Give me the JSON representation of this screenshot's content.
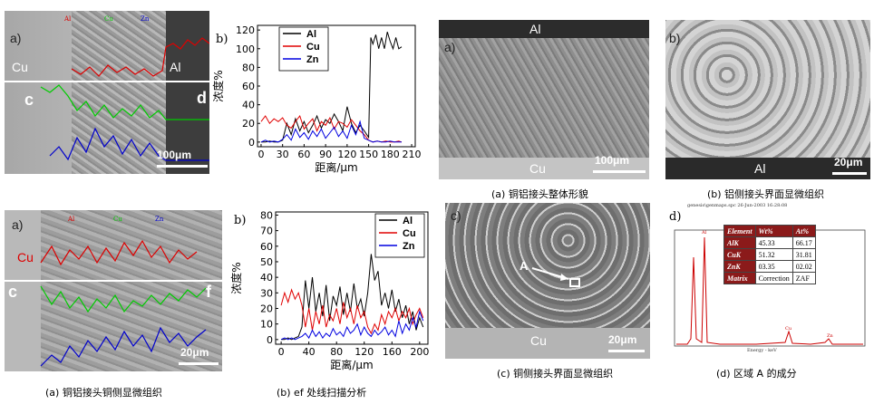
{
  "fig1": {
    "a": {
      "label": "a)",
      "cu": "Cu",
      "al": "Al",
      "c": "c",
      "d": "d",
      "scale": "100μm",
      "legend": [
        "Al",
        "Cu",
        "Zn"
      ]
    },
    "b": {
      "label": "b)",
      "ylabel": "浓度%",
      "xlabel": "距离/μm"
    }
  },
  "fig2": {
    "a": {
      "label": "a)",
      "cu": "Cu",
      "c": "c",
      "f": "f",
      "scale": "20μm",
      "legend": [
        "Al",
        "Cu",
        "Zn"
      ],
      "caption": "(a)  铜铝接头铜侧显微组织"
    },
    "b": {
      "label": "b)",
      "ylabel": "浓度%",
      "xlabel": "距离/μm",
      "caption": "(b) ef 处线扫描分析"
    }
  },
  "fig3": {
    "a": {
      "label": "a)",
      "al": "Al",
      "cu": "Cu",
      "scale": "100μm",
      "caption": "(a)  铜铝接头整体形貌"
    },
    "b": {
      "label": "b)",
      "al": "Al",
      "scale": "20μm",
      "caption": "(b)  铝侧接头界面显微组织"
    },
    "c": {
      "label": "c)",
      "a_mark": "A",
      "cu": "Cu",
      "scale": "20μm",
      "caption": "(c)  铜侧接头界面显微组织"
    },
    "d": {
      "label": "d)",
      "caption": "(d)  区域 A 的成分",
      "header_text": "genesis\\genmaps.spc   26-Jun-2003 16:28:08",
      "peaks": [
        "Al",
        "Cu",
        "Zn"
      ],
      "xaxis": "Energy - keV",
      "table": {
        "head": [
          "Element",
          "Wt%",
          "At%"
        ],
        "rows": [
          [
            "AlK",
            "45.33",
            "66.17"
          ],
          [
            "CuK",
            "51.32",
            "31.81"
          ],
          [
            "ZnK",
            "03.35",
            "02.02"
          ],
          [
            "Matrix",
            "Correction",
            "ZAF"
          ]
        ]
      }
    }
  },
  "chart_data": [
    {
      "type": "line",
      "id": "fig1b",
      "xlabel": "距离/μm",
      "ylabel": "浓度%",
      "xticks": [
        0,
        30,
        60,
        90,
        120,
        150,
        180,
        210
      ],
      "yticks": [
        0,
        20,
        40,
        60,
        80,
        100,
        120
      ],
      "xlim": [
        -5,
        215
      ],
      "ylim": [
        -5,
        125
      ],
      "legend_position": "top-left",
      "series": [
        {
          "name": "Al",
          "color": "#000000",
          "x": [
            0,
            6,
            12,
            18,
            24,
            30,
            36,
            42,
            48,
            54,
            60,
            66,
            72,
            78,
            84,
            90,
            96,
            102,
            108,
            114,
            120,
            126,
            132,
            138,
            144,
            150,
            153,
            156,
            160,
            164,
            168,
            172,
            176,
            180,
            184,
            188,
            192,
            196
          ],
          "y": [
            0,
            0,
            1,
            0,
            0,
            2,
            20,
            8,
            25,
            12,
            22,
            10,
            18,
            28,
            15,
            24,
            20,
            30,
            22,
            12,
            38,
            20,
            10,
            18,
            12,
            5,
            112,
            105,
            115,
            100,
            112,
            100,
            118,
            108,
            100,
            112,
            100,
            102
          ]
        },
        {
          "name": "Cu",
          "color": "#e00000",
          "x": [
            0,
            6,
            12,
            18,
            24,
            30,
            36,
            42,
            48,
            54,
            60,
            66,
            72,
            78,
            84,
            90,
            96,
            102,
            108,
            114,
            120,
            126,
            132,
            138,
            144,
            150,
            156,
            162,
            168,
            174,
            180,
            186,
            192,
            196
          ],
          "y": [
            22,
            28,
            20,
            25,
            22,
            26,
            18,
            15,
            22,
            28,
            14,
            20,
            25,
            12,
            22,
            18,
            26,
            14,
            22,
            20,
            16,
            24,
            18,
            12,
            8,
            2,
            0,
            1,
            0,
            1,
            0,
            0,
            1,
            0
          ]
        },
        {
          "name": "Zn",
          "color": "#0000e0",
          "x": [
            0,
            6,
            12,
            18,
            24,
            30,
            36,
            42,
            48,
            54,
            60,
            66,
            72,
            78,
            84,
            90,
            96,
            102,
            108,
            114,
            120,
            126,
            132,
            138,
            144,
            150,
            156,
            162,
            168,
            174,
            180,
            186,
            192,
            196
          ],
          "y": [
            0,
            2,
            0,
            1,
            0,
            3,
            8,
            2,
            14,
            5,
            10,
            3,
            12,
            6,
            14,
            4,
            10,
            16,
            6,
            12,
            4,
            18,
            8,
            22,
            4,
            2,
            0,
            1,
            0,
            0,
            1,
            0,
            0,
            0
          ]
        }
      ]
    },
    {
      "type": "line",
      "id": "fig2b",
      "xlabel": "距离/μm",
      "ylabel": "浓度%",
      "xticks": [
        0,
        40,
        80,
        120,
        160,
        200
      ],
      "yticks": [
        0,
        10,
        20,
        30,
        40,
        50,
        60,
        70,
        80
      ],
      "xlim": [
        -8,
        212
      ],
      "ylim": [
        -3,
        82
      ],
      "legend_position": "top-right",
      "series": [
        {
          "name": "Al",
          "color": "#000000",
          "x": [
            0,
            5,
            10,
            15,
            20,
            25,
            30,
            35,
            40,
            45,
            50,
            55,
            60,
            65,
            70,
            75,
            80,
            85,
            90,
            95,
            100,
            105,
            110,
            115,
            120,
            125,
            130,
            135,
            140,
            145,
            150,
            155,
            160,
            165,
            170,
            175,
            180,
            185,
            190,
            195,
            200,
            205
          ],
          "y": [
            0,
            0,
            1,
            0,
            1,
            2,
            8,
            38,
            20,
            40,
            18,
            30,
            15,
            35,
            12,
            28,
            22,
            34,
            16,
            30,
            18,
            36,
            20,
            26,
            15,
            30,
            55,
            38,
            44,
            22,
            30,
            20,
            32,
            18,
            26,
            14,
            22,
            10,
            18,
            6,
            14,
            8
          ]
        },
        {
          "name": "Cu",
          "color": "#e00000",
          "x": [
            0,
            5,
            10,
            15,
            20,
            25,
            30,
            35,
            40,
            45,
            50,
            55,
            60,
            65,
            70,
            75,
            80,
            85,
            90,
            95,
            100,
            105,
            110,
            115,
            120,
            125,
            130,
            135,
            140,
            145,
            150,
            155,
            160,
            165,
            170,
            175,
            180,
            185,
            190,
            195,
            200,
            205
          ],
          "y": [
            22,
            30,
            24,
            32,
            26,
            30,
            22,
            8,
            20,
            6,
            18,
            10,
            22,
            8,
            16,
            12,
            20,
            10,
            24,
            14,
            20,
            10,
            22,
            14,
            18,
            8,
            4,
            10,
            6,
            16,
            10,
            18,
            14,
            20,
            12,
            18,
            14,
            20,
            10,
            16,
            20,
            14
          ]
        },
        {
          "name": "Zn",
          "color": "#0000e0",
          "x": [
            0,
            5,
            10,
            15,
            20,
            25,
            30,
            35,
            40,
            45,
            50,
            55,
            60,
            65,
            70,
            75,
            80,
            85,
            90,
            95,
            100,
            105,
            110,
            115,
            120,
            125,
            130,
            135,
            140,
            145,
            150,
            155,
            160,
            165,
            170,
            175,
            180,
            185,
            190,
            195,
            200,
            205
          ],
          "y": [
            0,
            1,
            0,
            1,
            0,
            1,
            2,
            4,
            1,
            6,
            2,
            5,
            1,
            4,
            2,
            7,
            3,
            5,
            2,
            8,
            4,
            6,
            10,
            3,
            8,
            4,
            2,
            6,
            3,
            5,
            8,
            3,
            6,
            2,
            12,
            4,
            10,
            6,
            14,
            8,
            18,
            12
          ]
        }
      ]
    }
  ]
}
